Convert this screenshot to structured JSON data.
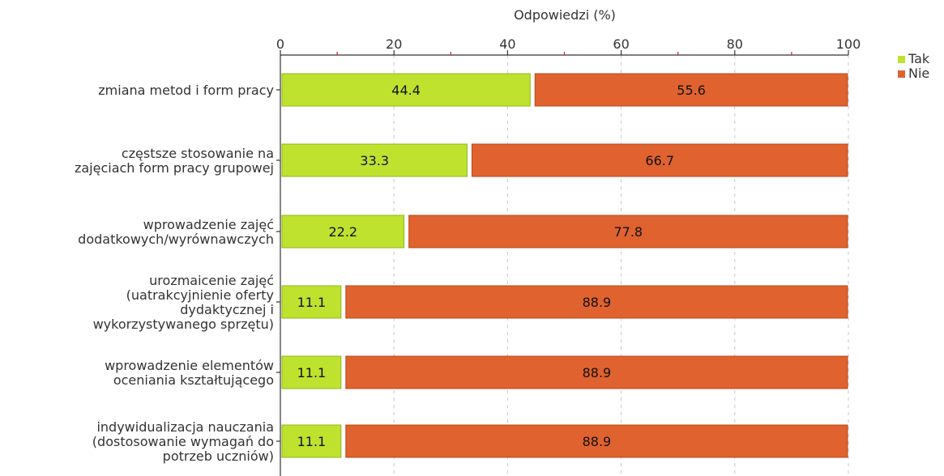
{
  "chart_data": {
    "type": "bar",
    "orientation": "horizontal",
    "stacked": true,
    "x_label": "Odpowiedzi (%)",
    "xlim": [
      0,
      100
    ],
    "ticks": [
      "0",
      "20",
      "40",
      "60",
      "80",
      "100"
    ],
    "grid": true,
    "legend_position": "top-right",
    "categories": [
      [
        "zmiana metod i form pracy"
      ],
      [
        "częstsze stosowanie na",
        "zajęciach form pracy grupowej"
      ],
      [
        "wprowadzenie zajęć",
        "dodatkowych/wyrównawczych"
      ],
      [
        "urozmaicenie zajęć",
        "(uatrakcyjnienie oferty",
        "dydaktycznej i",
        "wykorzystywanego sprzętu)"
      ],
      [
        "wprowadzenie elementów",
        "oceniania kształtującego"
      ],
      [
        "indywidualizacja nauczania",
        "(dostosowanie wymagań do",
        "potrzeb uczniów)"
      ]
    ],
    "series": [
      {
        "name": "Tak",
        "color": "#bfe22f",
        "border": "#8db81c",
        "values": [
          44.4,
          33.3,
          22.2,
          11.1,
          11.1,
          11.1
        ],
        "labels": [
          "44.4",
          "33.3",
          "22.2",
          "11.1",
          "11.1",
          "11.1"
        ]
      },
      {
        "name": "Nie",
        "color": "#e0622e",
        "border": "#b84a1c",
        "values": [
          55.6,
          66.7,
          77.8,
          88.9,
          88.9,
          88.9
        ],
        "labels": [
          "55.6",
          "66.7",
          "77.8",
          "88.9",
          "88.9",
          "88.9"
        ]
      }
    ]
  }
}
